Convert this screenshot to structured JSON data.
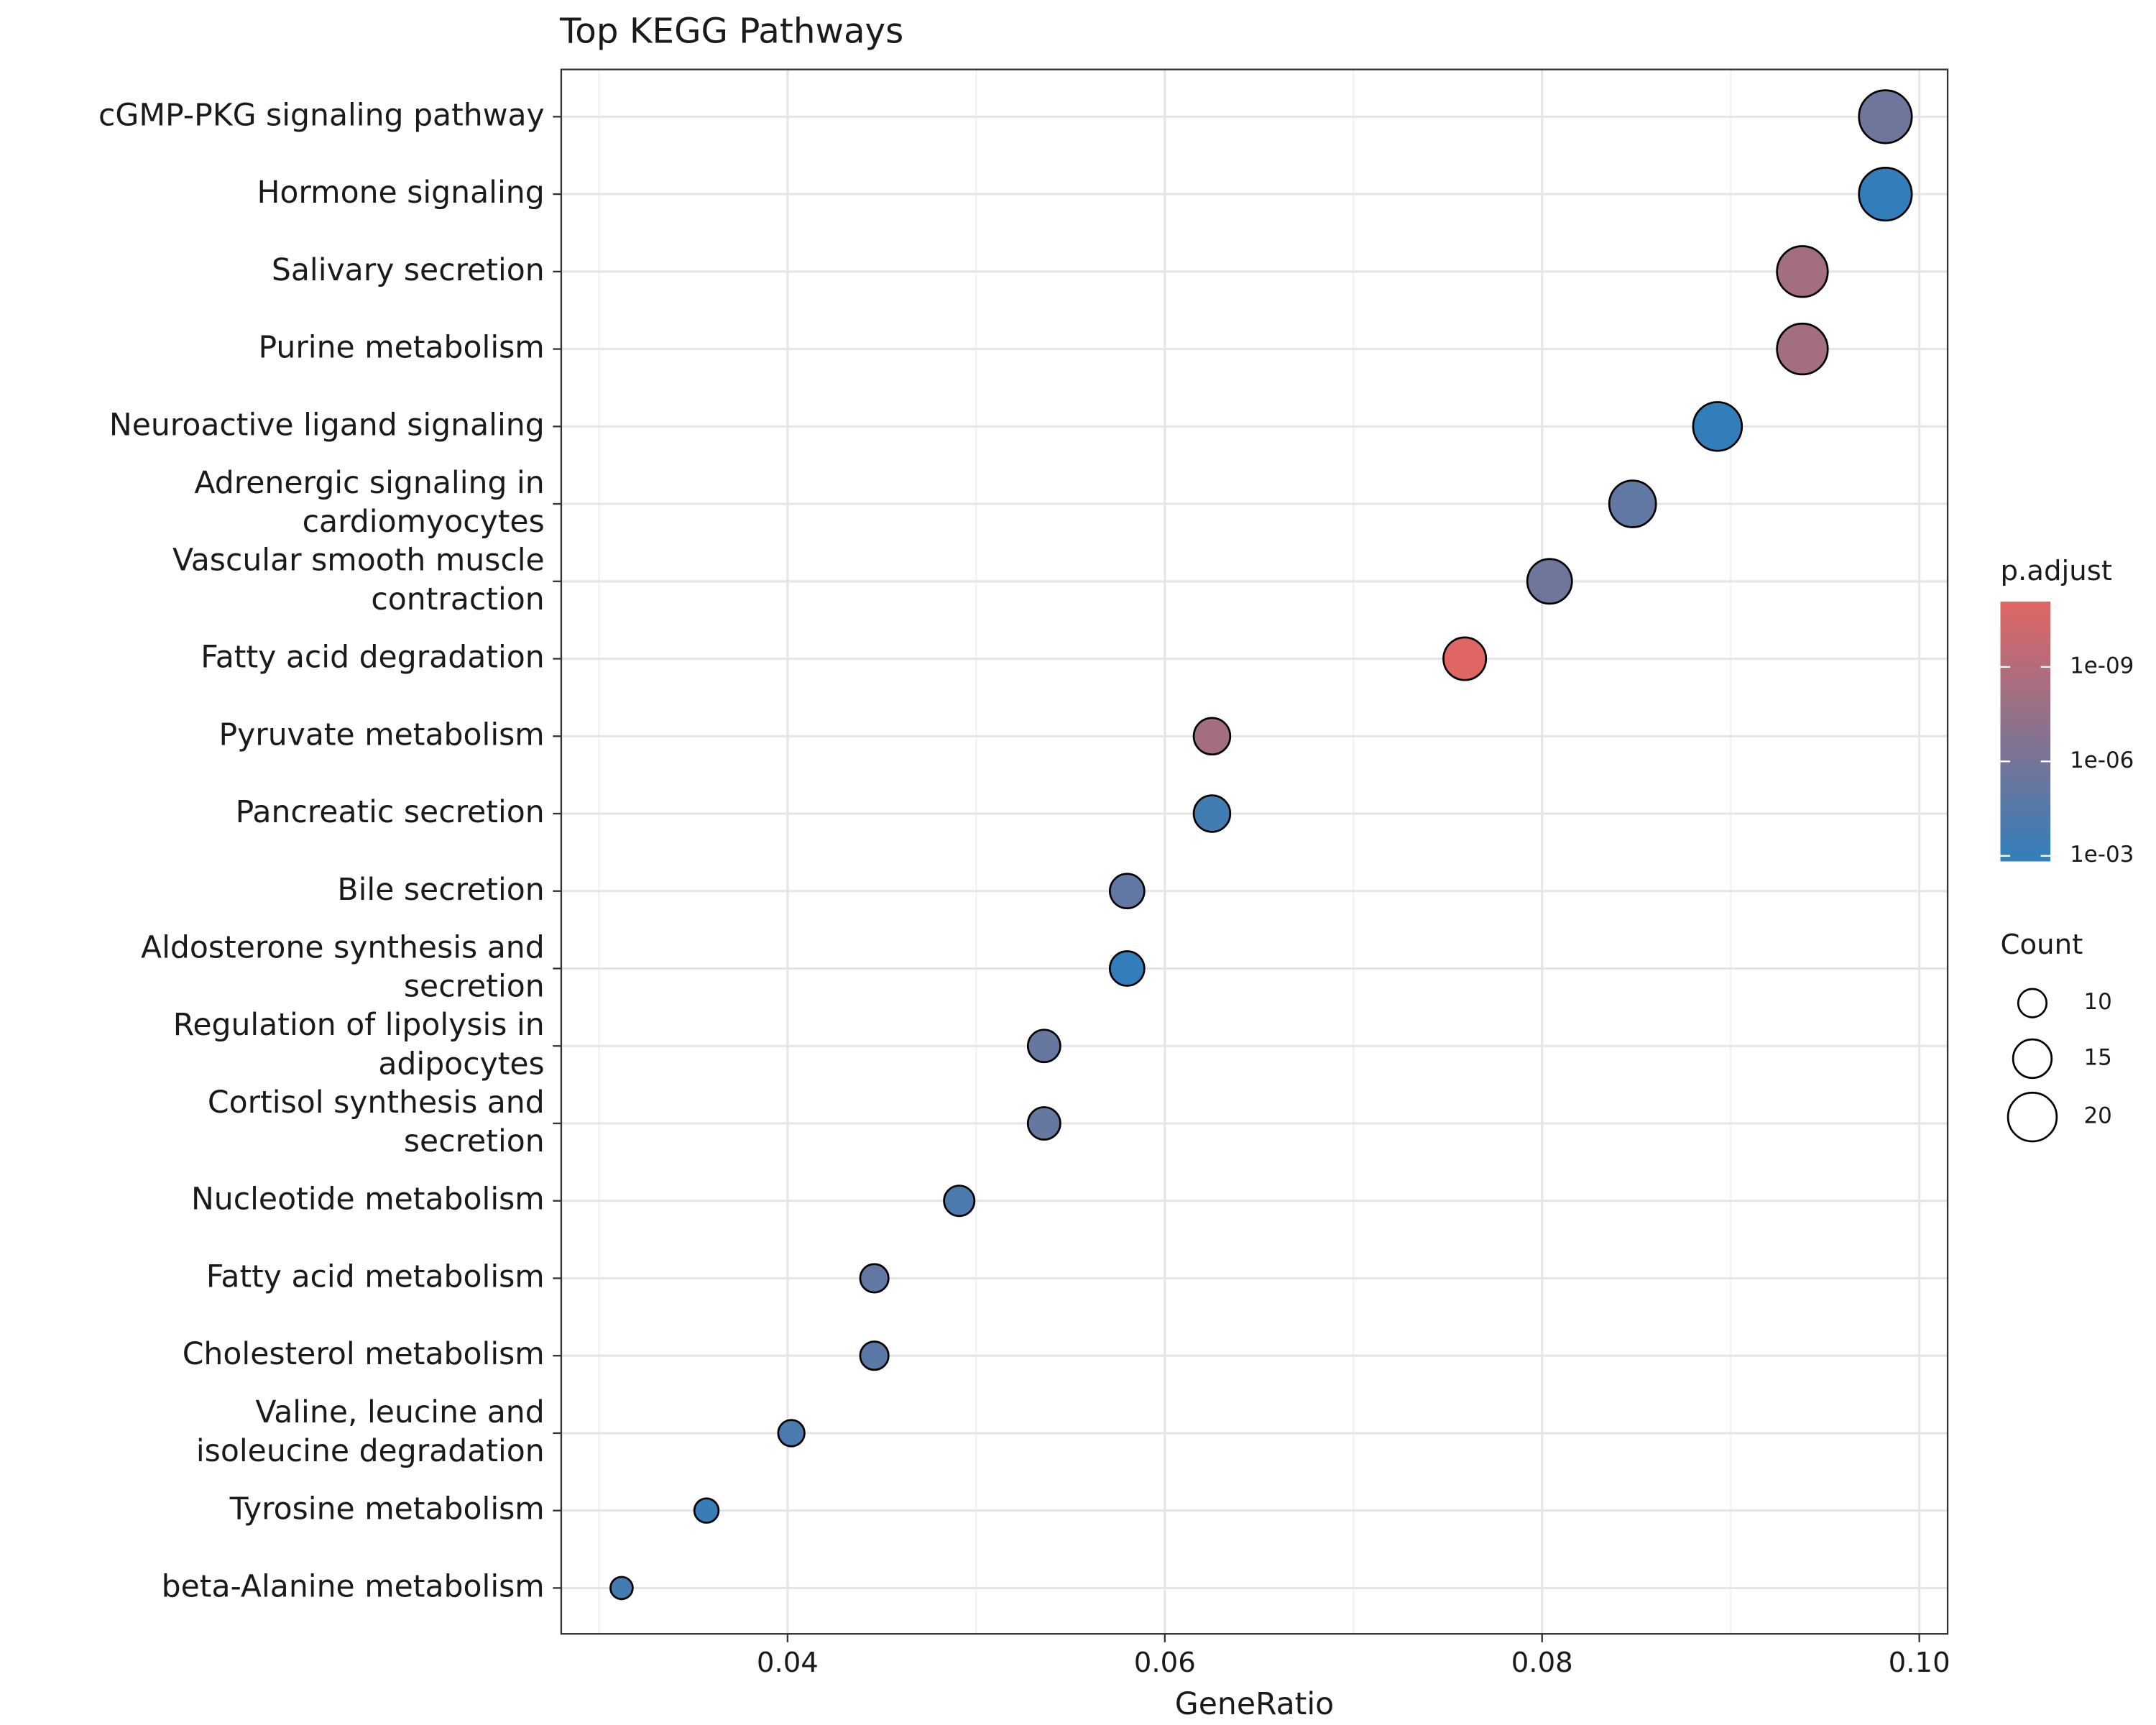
{
  "chart_data": {
    "type": "dot",
    "title": "Top KEGG Pathways",
    "x_label": "GeneRatio",
    "categories": [
      "cGMP-PKG signaling pathway",
      "Hormone signaling",
      "Salivary secretion",
      "Purine metabolism",
      "Neuroactive ligand signaling",
      "Adrenergic signaling in\ncardiomyocytes",
      "Vascular smooth muscle\ncontraction",
      "Fatty acid degradation",
      "Pyruvate metabolism",
      "Pancreatic secretion",
      "Bile secretion",
      "Aldosterone synthesis and\nsecretion",
      "Regulation of lipolysis in\nadipocytes",
      "Cortisol synthesis and\nsecretion",
      "Nucleotide metabolism",
      "Fatty acid metabolism",
      "Cholesterol metabolism",
      "Valine, leucine and\nisoleucine degradation",
      "Tyrosine metabolism",
      "beta-Alanine metabolism"
    ],
    "values": [
      0.0982,
      0.0982,
      0.0938,
      0.0938,
      0.0893,
      0.0848,
      0.0804,
      0.0759,
      0.0625,
      0.0625,
      0.058,
      0.058,
      0.0536,
      0.0536,
      0.0491,
      0.0446,
      0.0446,
      0.0402,
      0.0357,
      0.0312
    ],
    "counts": [
      22,
      22,
      21,
      21,
      20,
      19,
      18,
      17,
      14,
      14,
      13,
      13,
      12,
      12,
      11,
      10,
      10,
      9,
      8,
      7
    ],
    "p_adjust": [
      2e-06,
      0.0015,
      6e-09,
      6e-09,
      0.0015,
      1e-05,
      2e-06,
      8.4e-12,
      6e-09,
      0.0003,
      1e-05,
      0.0015,
      5e-06,
      5e-06,
      0.0001,
      1e-05,
      2e-05,
      0.0001,
      0.0006,
      0.0002
    ],
    "xlim": [
      0.028,
      0.1015
    ],
    "xticks": [
      0.04,
      0.06,
      0.08,
      {
        "value": 0.1,
        "label": "0.10"
      }
    ],
    "x_minor_ticks": [
      0.03,
      0.05,
      0.07,
      0.09
    ],
    "grid": true,
    "color_scale": {
      "title": "p.adjust",
      "log": true,
      "lim": [
        8.4e-12,
        0.0015
      ],
      "colors": [
        "#e06663",
        "#327eba"
      ],
      "ticks": [
        {
          "value": 1e-09,
          "label": "1e-09"
        },
        {
          "value": 1e-06,
          "label": "1e-06"
        },
        {
          "value": 0.001,
          "label": "1e-03"
        }
      ]
    },
    "size_legend": {
      "title": "Count",
      "values": [
        10,
        15,
        20
      ]
    }
  }
}
